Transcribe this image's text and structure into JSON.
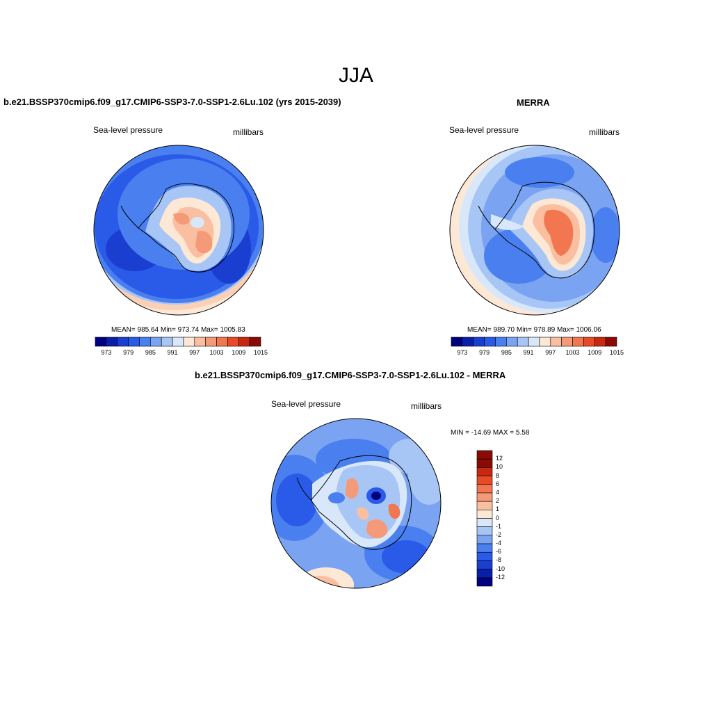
{
  "figure": {
    "season": "JJA"
  },
  "panels": [
    {
      "title": "b.e21.BSSP370cmip6.f09_g17.CMIP6-SSP3-7.0-SSP1-2.6Lu.102 (yrs 2015-2039)",
      "variable": "Sea-level pressure",
      "units": "millibars",
      "stats": "MEAN= 985.64  Min= 973.74  Max= 1005.83"
    },
    {
      "title": "MERRA",
      "variable": "Sea-level pressure",
      "units": "millibars",
      "stats": "MEAN= 989.70  Min= 978.89  Max= 1006.06"
    },
    {
      "title": "b.e21.BSSP370cmip6.f09_g17.CMIP6-SSP3-7.0-SSP1-2.6Lu.102 - MERRA",
      "variable": "Sea-level pressure",
      "units": "millibars",
      "stats": "MIN = -14.69 MAX =   5.58"
    }
  ],
  "colorbar_abs": {
    "labels": [
      "973",
      "979",
      "985",
      "991",
      "997",
      "1003",
      "1009",
      "1015"
    ],
    "colors": [
      "#00007f",
      "#0a1fa8",
      "#1a3fd0",
      "#2a5ae8",
      "#4a7ff0",
      "#7aa3f2",
      "#a8c6f5",
      "#d8e8fa",
      "#fde8d6",
      "#f9bfa0",
      "#f59a78",
      "#f27650",
      "#e84a28",
      "#c82810",
      "#8c0a04"
    ]
  },
  "colorbar_diff": {
    "labels": [
      "12",
      "10",
      "8",
      "6",
      "4",
      "2",
      "1",
      "0",
      "-1",
      "-2",
      "-4",
      "-6",
      "-8",
      "-10",
      "-12"
    ],
    "colors": [
      "#8c0a04",
      "#c82810",
      "#e84a28",
      "#f27650",
      "#f59a78",
      "#f9bfa0",
      "#fde8d6",
      "#d8e8fa",
      "#a8c6f5",
      "#7aa3f2",
      "#4a7ff0",
      "#2a5ae8",
      "#1a3fd0",
      "#0a1fa8",
      "#00007f"
    ]
  }
}
